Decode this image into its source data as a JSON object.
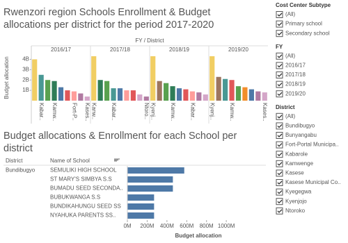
{
  "chart_data": [
    {
      "type": "column",
      "title": "Rwenzori region Schools Enrollment & Budget allocations  per district for the period 2017-2020",
      "column_header": "FY / District",
      "ylabel": "Budget allocation",
      "ylim": [
        0,
        4500000000
      ],
      "yticks": [
        {
          "value": 1000000000,
          "label": "1B"
        },
        {
          "value": 2000000000,
          "label": "2B"
        },
        {
          "value": 3000000000,
          "label": "3B"
        },
        {
          "value": 4000000000,
          "label": "4B"
        }
      ],
      "panels": [
        {
          "name": "2016/17",
          "categories": [
            null,
            "Kabar..",
            null,
            "Kamw..",
            null,
            null,
            "Fort-P..",
            null,
            "Kases.."
          ],
          "values": [
            4000000000,
            2500000000,
            2000000000,
            1900000000,
            1300000000,
            1000000000,
            900000000,
            700000000,
            400000000
          ],
          "colors": [
            "#f1ce63",
            "#499894",
            "#59a14f",
            "#2f7d57",
            "#4e79a7",
            "#e15759",
            "#ff9d9a",
            "#b07aa1",
            "#d4a6c8"
          ]
        },
        {
          "name": "2017/18",
          "categories": [
            "Kanw..",
            null,
            null,
            "Kabar..",
            null,
            null,
            null,
            null,
            "Ntoro.."
          ],
          "values": [
            4300000000,
            2000000000,
            1900000000,
            1200000000,
            1200000000,
            1000000000,
            1000000000,
            600000000,
            400000000
          ],
          "colors": [
            "#f1ce63",
            "#2f7d57",
            "#59a14f",
            "#499894",
            "#4e79a7",
            "#ff9d9a",
            "#e15759",
            "#d4a6c8",
            "#b07aa1"
          ]
        },
        {
          "name": "2018/19",
          "categories": [
            "Kyenj..",
            null,
            null,
            "Kamw..",
            null,
            null,
            "Kabar..",
            null,
            null
          ],
          "values": [
            4300000000,
            1900000000,
            1700000000,
            1400000000,
            1200000000,
            1100000000,
            900000000,
            800000000,
            600000000
          ],
          "colors": [
            "#f1ce63",
            "#9d7660",
            "#59a14f",
            "#2f7d57",
            "#4e79a7",
            "#e15759",
            "#ff9d9a",
            "#b07aa1",
            "#d4a6c8"
          ]
        },
        {
          "name": "2019/20",
          "categories": [
            "Kyenj..",
            null,
            null,
            "Kamw..",
            null,
            null,
            null,
            null,
            "Kases.."
          ],
          "values": [
            4300000000,
            2300000000,
            2100000000,
            2000000000,
            1400000000,
            1300000000,
            1100000000,
            900000000,
            800000000
          ],
          "colors": [
            "#f1ce63",
            "#9d7660",
            "#499894",
            "#e15759",
            "#59a14f",
            "#f28e2b",
            "#4e79a7",
            "#b07aa1",
            "#d4a6c8"
          ]
        }
      ]
    },
    {
      "type": "bar",
      "title": "Budget allocations & Enrollment for each School per district",
      "row_headers": [
        "District",
        "Name of School"
      ],
      "district": "Bundibugyo",
      "categories": [
        "SEMULIKI HIGH SCHOOL",
        "ST MARY'S SIMBYA S.S",
        "BUMADU SEED SECONDA..",
        "BUBUKWANGA S.S",
        "BUNDIKAHUNGU SEED SS",
        "NYAHUKA PARENTS SS.."
      ],
      "values": [
        575000000,
        460000000,
        460000000,
        270000000,
        270000000,
        270000000
      ],
      "color": "#4e79a7",
      "xlabel": "Budget allocation",
      "xlim": [
        0,
        1400000000
      ],
      "xticks": [
        {
          "value": 0,
          "label": "0M"
        },
        {
          "value": 200000000,
          "label": "200M"
        },
        {
          "value": 400000000,
          "label": "400M"
        },
        {
          "value": 600000000,
          "label": "600M"
        },
        {
          "value": 800000000,
          "label": "800M"
        },
        {
          "value": 1000000000,
          "label": "1000M"
        }
      ]
    }
  ],
  "filters": [
    {
      "title": "Cost Center Subtype",
      "options": [
        "(All)",
        "Primary school",
        "Secondary school"
      ]
    },
    {
      "title": "FY",
      "options": [
        "(All)",
        "2016/17",
        "2017/18",
        "2018/19",
        "2019/20"
      ]
    },
    {
      "title": "District",
      "options": [
        "(All)",
        "Bundibugyo",
        "Bunyangabu",
        "Fort-Portal Municipa..",
        "Kabarole",
        "Kamwenge",
        "Kasese",
        "Kasese Municipal Co..",
        "Kyegegwa",
        "Kyenjojo",
        "Ntoroko"
      ]
    }
  ]
}
